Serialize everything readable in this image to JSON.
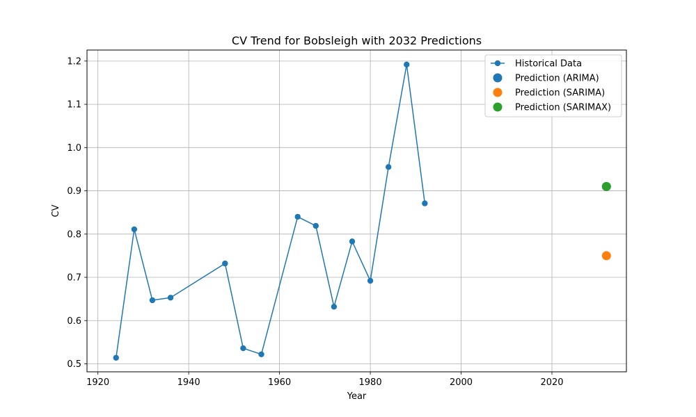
{
  "chart_data": {
    "type": "scatter",
    "title": "CV Trend for Bobsleigh with 2032 Predictions",
    "xlabel": "Year",
    "ylabel": "CV",
    "xlim": [
      1917.6,
      2036.4
    ],
    "ylim": [
      0.4815,
      1.2255
    ],
    "x_ticks": [
      1920,
      1940,
      1960,
      1980,
      2000,
      2020
    ],
    "y_ticks": [
      0.5,
      0.6,
      0.7,
      0.8,
      0.9,
      1.0,
      1.1,
      1.2
    ],
    "x_tick_labels": [
      "1920",
      "1940",
      "1960",
      "1980",
      "2000",
      "2020"
    ],
    "y_tick_labels": [
      "0.5",
      "0.6",
      "0.7",
      "0.8",
      "0.9",
      "1.0",
      "1.1",
      "1.2"
    ],
    "grid": true,
    "legend_position": "top-right",
    "series": [
      {
        "name": "Historical Data",
        "kind": "line-marker",
        "color": "#1f77b4",
        "x": [
          1924,
          1928,
          1932,
          1936,
          1948,
          1952,
          1956,
          1964,
          1968,
          1972,
          1976,
          1980,
          1984,
          1988,
          1992
        ],
        "y": [
          0.514,
          0.811,
          0.647,
          0.653,
          0.732,
          0.536,
          0.522,
          0.84,
          0.819,
          0.632,
          0.783,
          0.692,
          0.955,
          1.192,
          0.871
        ]
      },
      {
        "name": "Prediction (ARIMA)",
        "kind": "point",
        "color": "#1f77b4",
        "x": [
          2032
        ],
        "y": [
          0.91
        ]
      },
      {
        "name": "Prediction (SARIMA)",
        "kind": "point",
        "color": "#ff7f0e",
        "x": [
          2032
        ],
        "y": [
          0.75
        ]
      },
      {
        "name": "Prediction (SARIMAX)",
        "kind": "point",
        "color": "#2ca02c",
        "x": [
          2032
        ],
        "y": [
          0.91
        ]
      }
    ]
  }
}
